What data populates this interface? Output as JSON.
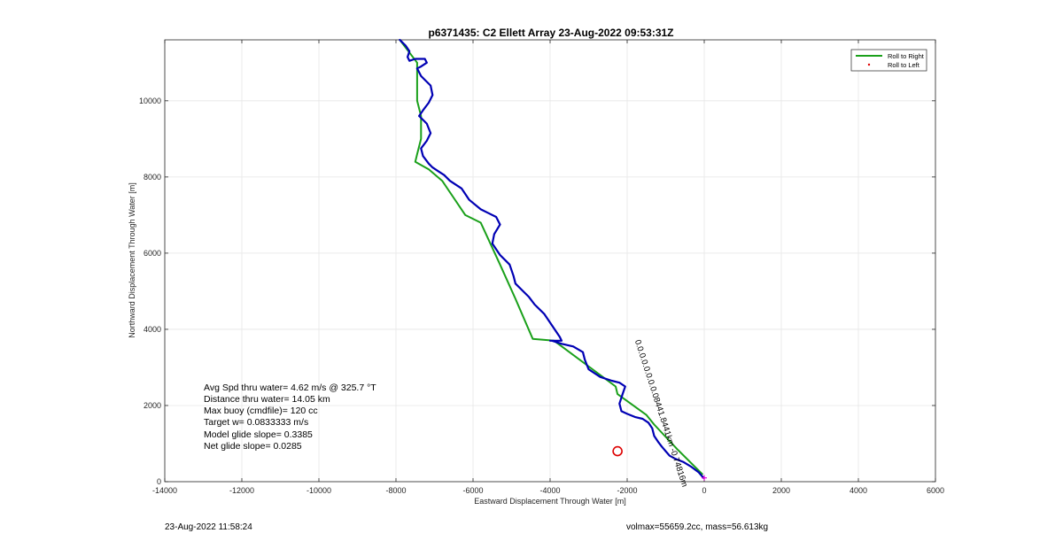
{
  "chart_data": {
    "type": "line",
    "title": "p6371435: C2 Ellett Array 23-Aug-2022 09:53:31Z",
    "xlabel": "Eastward Displacement Through Water [m]",
    "ylabel": "Northward Displacement Through Water [m]",
    "xlim": [
      -14000,
      6000
    ],
    "ylim": [
      0,
      11600
    ],
    "xticks": [
      -14000,
      -12000,
      -10000,
      -8000,
      -6000,
      -4000,
      -2000,
      0,
      2000,
      4000,
      6000
    ],
    "yticks": [
      0,
      2000,
      4000,
      6000,
      8000,
      10000
    ],
    "grid": true,
    "legend": {
      "placement": "top-right",
      "entries": [
        {
          "label": "Roll to Right",
          "color": "#1aa01a",
          "marker": "line"
        },
        {
          "label": "Roll to Left",
          "color": "#e00000",
          "marker": "dot"
        }
      ]
    },
    "series": [
      {
        "name": "Roll to Right",
        "color": "#1aa01a",
        "x": [
          -50,
          -700,
          -1300,
          -1500,
          -2250,
          -2300,
          -3900,
          -4450,
          -4900,
          -5300,
          -5800,
          -6200,
          -6800,
          -7150,
          -7500,
          -7450,
          -7350,
          -7350,
          -7450,
          -7450,
          -7450,
          -7900
        ],
        "y": [
          200,
          850,
          1500,
          1750,
          2300,
          2500,
          3700,
          3750,
          4800,
          5700,
          6800,
          7000,
          7900,
          8200,
          8400,
          8600,
          9000,
          9600,
          10000,
          10600,
          11000,
          11600
        ]
      },
      {
        "name": "track",
        "color": "#0000b4",
        "x": [
          -20,
          -150,
          -350,
          -550,
          -750,
          -900,
          -1000,
          -1100,
          -1200,
          -1300,
          -1350,
          -1450,
          -1600,
          -1800,
          -2000,
          -2150,
          -2200,
          -2120,
          -2050,
          -2200,
          -2400,
          -2700,
          -3000,
          -3100,
          -3150,
          -3400,
          -3700,
          -3950,
          -4000,
          -3900,
          -3700,
          -3750,
          -3950,
          -4150,
          -4400,
          -4550,
          -4700,
          -4900,
          -4950,
          -5050,
          -5300,
          -5500,
          -5450,
          -5300,
          -5400,
          -5600,
          -5800,
          -6100,
          -6300,
          -6600,
          -6750,
          -6900,
          -7050,
          -7150,
          -7300,
          -7350,
          -7200,
          -7100,
          -7200,
          -7400,
          -7300,
          -7150,
          -7050,
          -7100,
          -7350,
          -7450,
          -7350,
          -7200,
          -7250,
          -7500,
          -7650,
          -7700,
          -7650,
          -7750,
          -7850,
          -7900
        ],
        "y": [
          100,
          250,
          400,
          520,
          600,
          680,
          800,
          920,
          1050,
          1200,
          1400,
          1550,
          1650,
          1700,
          1780,
          1850,
          2050,
          2300,
          2500,
          2600,
          2650,
          2750,
          2950,
          3200,
          3400,
          3550,
          3620,
          3700,
          3700,
          3700,
          3700,
          3800,
          4100,
          4400,
          4650,
          4850,
          5000,
          5200,
          5400,
          5700,
          5950,
          6250,
          6500,
          6750,
          6950,
          7050,
          7150,
          7400,
          7700,
          7900,
          8050,
          8150,
          8250,
          8350,
          8550,
          8750,
          8950,
          9150,
          9400,
          9600,
          9750,
          9950,
          10150,
          10400,
          10650,
          10850,
          10900,
          11000,
          11100,
          11100,
          11050,
          11150,
          11300,
          11450,
          11550,
          11600
        ]
      }
    ],
    "markers": [
      {
        "name": "target-circle",
        "x": -2250,
        "y": 800,
        "color": "#dd0000",
        "shape": "circle"
      },
      {
        "name": "start-marker",
        "x": 0,
        "y": 100,
        "color": "#dd00dd",
        "shape": "plus"
      }
    ],
    "annotations": [
      {
        "text": "0.0.0.0.0.0.0.0.08441.8441km  -0.74816m",
        "x": -1800,
        "y": 3700,
        "rotation": 72
      }
    ],
    "stats": [
      "Avg Spd thru water=  4.62 m/s @ 325.7 °T",
      "Distance thru water= 14.05 km",
      "Max buoy (cmdfile)= 120 cc",
      "Target w= 0.0833333 m/s",
      "Model glide slope= 0.3385",
      "Net glide slope= 0.0285"
    ]
  },
  "footer": {
    "timestamp": "23-Aug-2022 11:58:24",
    "volmass": "volmax=55659.2cc, mass=56.613kg"
  },
  "colors": {
    "grid": "#e6e6e6",
    "axis": "#262626",
    "legend_border": "#262626"
  }
}
